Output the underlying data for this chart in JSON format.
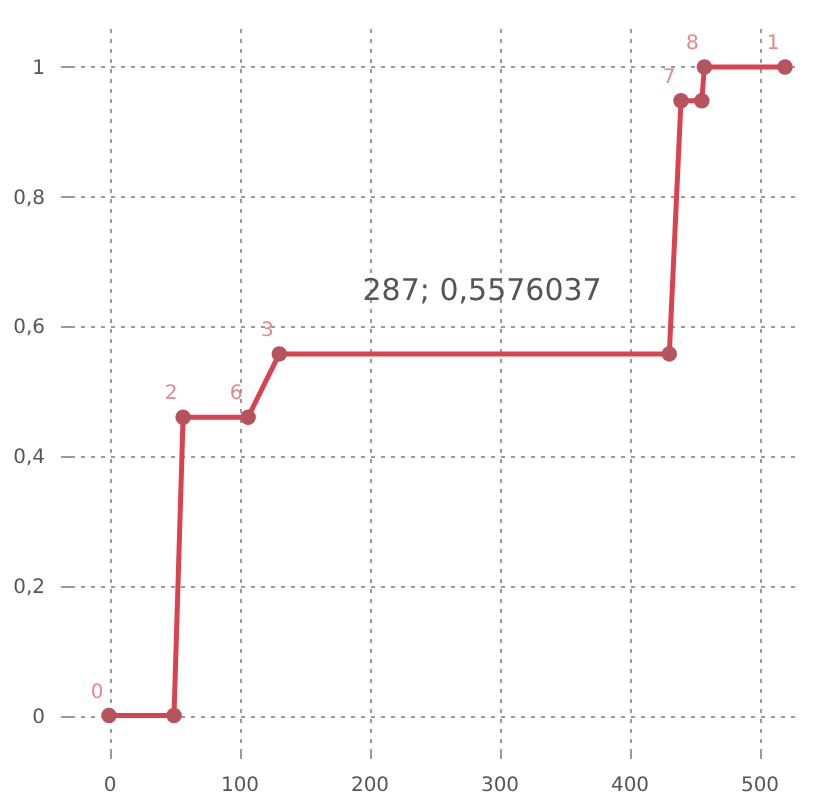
{
  "chart_data": {
    "type": "line",
    "x": [
      0,
      50,
      57,
      107,
      131,
      431,
      440,
      456,
      458,
      520
    ],
    "series": [
      {
        "color": "#d9434f",
        "values": [
          0,
          0,
          0.46,
          0.46,
          0.5576,
          0.5576,
          0.948,
          0.948,
          1,
          1
        ]
      }
    ],
    "value_labels": [
      "0",
      null,
      "2",
      "6",
      "3",
      null,
      "7",
      null,
      "8",
      "1"
    ],
    "annotations": [
      {
        "text": "287; 0,5576037",
        "x": 287,
        "y": 0.5576037
      }
    ],
    "xlim": [
      -30,
      530
    ],
    "xticks": [
      0,
      100,
      200,
      300,
      400,
      500
    ],
    "ylim": [
      -0.05,
      1.06
    ],
    "yticks": [
      0,
      {
        "value": 0.2,
        "label": "0,2"
      },
      {
        "value": 0.4,
        "label": "0,4"
      },
      {
        "value": 0.6,
        "label": "0,6"
      },
      {
        "value": 0.8,
        "label": "0,8"
      },
      1
    ],
    "grid": true,
    "marker": "circle",
    "line_style": "solid"
  }
}
